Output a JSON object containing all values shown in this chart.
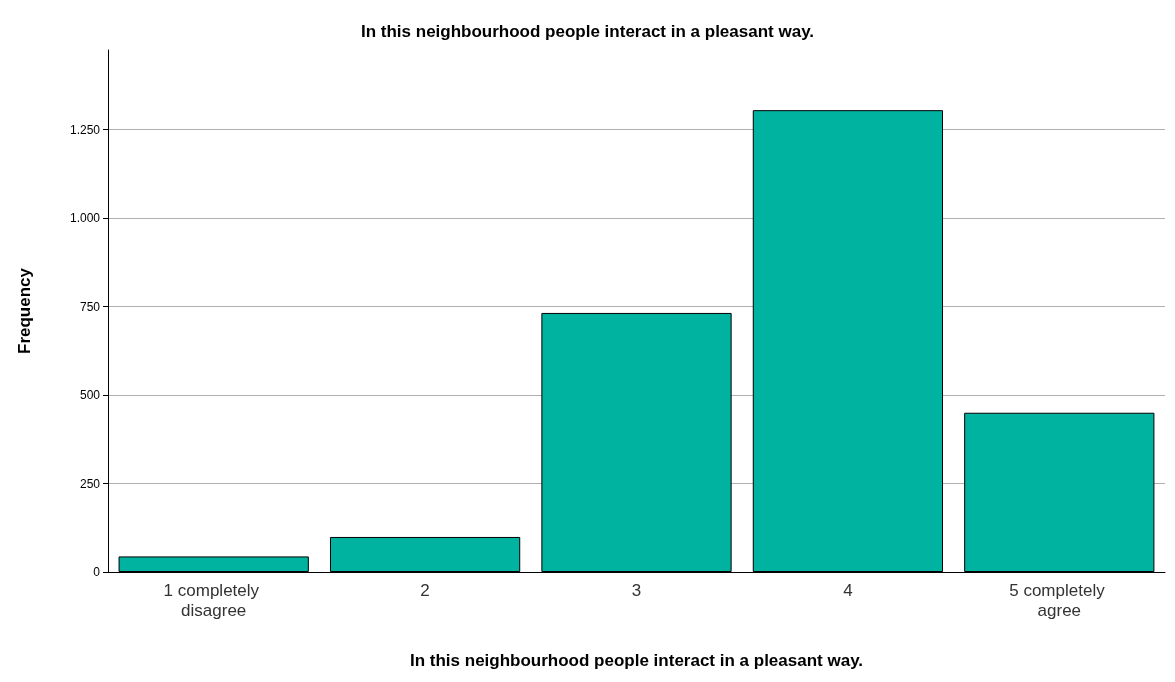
{
  "chart_data": {
    "type": "bar",
    "title": "In this neighbourhood people interact in a pleasant way.",
    "xlabel": "In this neighbourhood people interact in a pleasant way.",
    "ylabel": "Frequency",
    "categories": [
      "1 completely disagree",
      "2",
      "3",
      "4",
      "5 completely agree"
    ],
    "values": [
      44,
      99,
      732,
      1305,
      450
    ],
    "color": "#00b3a0",
    "ylim": [
      0,
      1475
    ],
    "yticks": [
      0,
      250,
      500,
      750,
      {
        "value": 1000,
        "label": "1.000"
      },
      {
        "value": 1250,
        "label": "1.250"
      }
    ],
    "grid": "y"
  }
}
